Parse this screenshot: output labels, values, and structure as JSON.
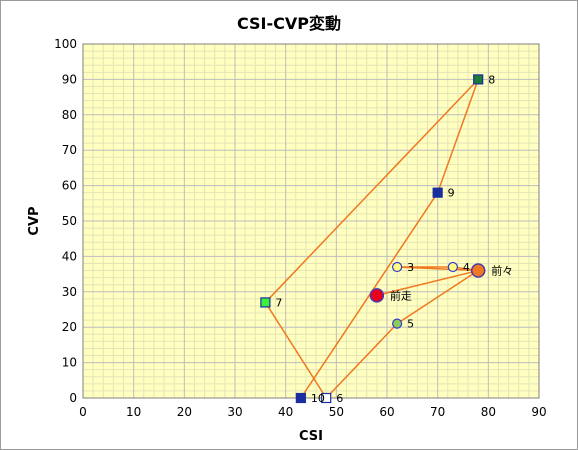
{
  "chart_data": {
    "type": "scatter",
    "title": "CSI-CVP変動",
    "xlabel": "CSI",
    "ylabel": "CVP",
    "xlim": [
      0,
      90
    ],
    "ylim": [
      0,
      100
    ],
    "xticks": [
      0,
      10,
      20,
      30,
      40,
      50,
      60,
      70,
      80,
      90
    ],
    "yticks": [
      0,
      10,
      20,
      30,
      40,
      50,
      60,
      70,
      80,
      90,
      100
    ],
    "grid": true,
    "colors": {
      "plot_background": "#ffffc0",
      "minor_grid": "#e4e4b8",
      "major_grid": "#bdbdbd",
      "line": "#f07820"
    },
    "points": [
      {
        "label": "前走",
        "x": 58,
        "y": 29,
        "marker": "circle-large",
        "fill": "#e8001c",
        "stroke": "#4a3aa8"
      },
      {
        "label": "前々",
        "x": 78,
        "y": 36,
        "marker": "circle-large",
        "fill": "#f07820",
        "stroke": "#4a3aa8"
      },
      {
        "label": "3",
        "x": 62,
        "y": 37,
        "marker": "circle",
        "fill": "#ffff80",
        "stroke": "#3a3ad0"
      },
      {
        "label": "4",
        "x": 73,
        "y": 37,
        "marker": "circle",
        "fill": "#ffff80",
        "stroke": "#3a3ad0"
      },
      {
        "label": "5",
        "x": 62,
        "y": 21,
        "marker": "circle",
        "fill": "#8ccc5a",
        "stroke": "#3a3ad0"
      },
      {
        "label": "6",
        "x": 48,
        "y": 0,
        "marker": "square",
        "fill": "#ffffff",
        "stroke": "#1a2ea0"
      },
      {
        "label": "7",
        "x": 36,
        "y": 27,
        "marker": "square",
        "fill": "#3cf03c",
        "stroke": "#1a2ea0"
      },
      {
        "label": "8",
        "x": 78,
        "y": 90,
        "marker": "square",
        "fill": "#1a7a3a",
        "stroke": "#1a2ea0"
      },
      {
        "label": "9",
        "x": 70,
        "y": 58,
        "marker": "square",
        "fill": "#1a2ea0",
        "stroke": "#1a2ea0"
      },
      {
        "label": "10",
        "x": 43,
        "y": 0,
        "marker": "square",
        "fill": "#1a2ea0",
        "stroke": "#1a2ea0"
      }
    ],
    "path_order": [
      "前走",
      "前々",
      "3",
      "4",
      "前々",
      "5",
      "6",
      "7",
      "8",
      "9",
      "10"
    ]
  }
}
